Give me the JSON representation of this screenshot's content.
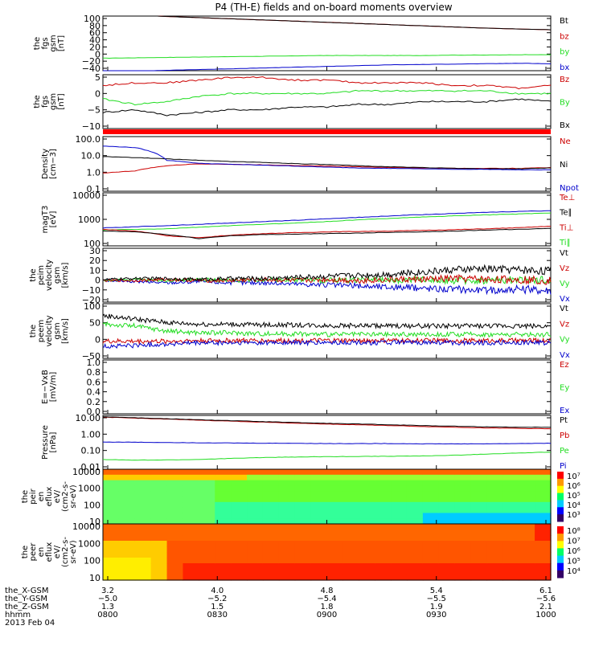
{
  "title": "P4 (TH-E) fields and on-board moments overview",
  "colors": {
    "black": "#000000",
    "red": "#cc0000",
    "green": "#22dd22",
    "blue": "#0000cc",
    "rule": "#ff0000"
  },
  "chart_data": [
    {
      "type": "line",
      "id": "p1",
      "ylabel": [
        "the",
        "fgs",
        "gsm",
        "[nT]"
      ],
      "yticks": [
        "100",
        "80",
        "60",
        "40",
        "20",
        "0",
        "−20",
        "−40"
      ],
      "legend": [
        {
          "name": "Bt",
          "color": "black"
        },
        {
          "name": "bz",
          "color": "red"
        },
        {
          "name": "by",
          "color": "green"
        },
        {
          "name": "bx",
          "color": "blue"
        }
      ],
      "series": [
        {
          "color": "red",
          "values": [
            104,
            102,
            99,
            96,
            93,
            90,
            87,
            84,
            81,
            78,
            75,
            72,
            69,
            67,
            65
          ]
        },
        {
          "color": "black",
          "values": [
            104,
            102,
            99,
            96,
            93,
            90,
            87,
            84,
            81,
            78,
            75,
            72,
            69,
            67,
            65
          ]
        },
        {
          "color": "green",
          "values": [
            -8,
            -7,
            -6,
            -5,
            -4,
            -3,
            -2,
            -1,
            -1,
            -1,
            -1,
            0,
            0,
            1,
            1
          ]
        },
        {
          "color": "blue",
          "values": [
            -43,
            -41,
            -39,
            -37,
            -35,
            -33,
            -31,
            -29,
            -27,
            -25,
            -24,
            -23,
            -22,
            -21,
            -22
          ]
        }
      ]
    },
    {
      "type": "line",
      "id": "p2",
      "ylabel": [
        "the",
        "fgs",
        "gsm",
        "[nT]"
      ],
      "yticks": [
        "5",
        "0",
        "−5",
        "−10"
      ],
      "legend": [
        {
          "name": "Bz",
          "color": "red"
        },
        {
          "name": "By",
          "color": "green"
        },
        {
          "name": "Bx",
          "color": "black"
        }
      ],
      "series": [
        {
          "color": "red",
          "values": [
            4,
            5,
            5,
            6,
            7,
            7,
            6,
            6,
            5,
            5,
            5,
            4,
            4,
            3,
            4
          ]
        },
        {
          "color": "green",
          "values": [
            -1,
            -3,
            -2,
            0,
            1,
            1,
            1,
            1,
            2,
            2,
            2,
            2,
            2,
            1,
            1
          ]
        },
        {
          "color": "black",
          "values": [
            -6,
            -5,
            -7,
            -6,
            -5,
            -5,
            -4,
            -4,
            -3,
            -3,
            -2,
            -2,
            -2,
            -1,
            -2
          ]
        }
      ]
    },
    {
      "type": "line",
      "id": "p3",
      "log": true,
      "ylabel": [
        "Density",
        "[cm−3]"
      ],
      "yticks": [
        "100.0",
        "10.0",
        "1.0",
        "0.1"
      ],
      "legend": [
        {
          "name": "Ne",
          "color": "red"
        },
        {
          "name": "Ni",
          "color": "black"
        },
        {
          "name": "Npot",
          "color": "blue"
        }
      ],
      "series": [
        {
          "color": "red",
          "values": [
            1.0,
            1.3,
            2.5,
            3.2,
            3.0,
            2.8,
            2.6,
            2.4,
            2.2,
            2.0,
            1.9,
            1.8,
            1.8,
            1.8,
            2.0
          ]
        },
        {
          "color": "black",
          "values": [
            8.0,
            7.0,
            6.0,
            5.0,
            4.3,
            3.8,
            3.3,
            2.9,
            2.5,
            2.2,
            2.0,
            1.8,
            1.7,
            1.7,
            1.9
          ]
        },
        {
          "color": "blue",
          "values": [
            30,
            25,
            5,
            3.4,
            3.0,
            2.7,
            2.4,
            2.1,
            1.9,
            1.8,
            1.7,
            1.6,
            1.6,
            1.5,
            1.5
          ]
        }
      ]
    },
    {
      "type": "line",
      "id": "p4",
      "log": true,
      "ylabel": [
        "magT3",
        "[eV]"
      ],
      "yticks": [
        "10000",
        "1000",
        "100"
      ],
      "legend": [
        {
          "name": "Te⊥",
          "color": "red"
        },
        {
          "name": "Te∥",
          "color": "black"
        },
        {
          "name": "Ti⊥",
          "color": "red"
        },
        {
          "name": "Ti∥",
          "color": "green"
        }
      ],
      "series": [
        {
          "color": "blue",
          "values": [
            350,
            400,
            450,
            520,
            600,
            700,
            800,
            950,
            1100,
            1300,
            1500,
            1700,
            1900,
            2100,
            2300
          ]
        },
        {
          "color": "green",
          "values": [
            280,
            300,
            320,
            380,
            450,
            520,
            600,
            700,
            850,
            1000,
            1150,
            1300,
            1450,
            1600,
            1800
          ]
        },
        {
          "color": "red",
          "values": [
            300,
            250,
            150,
            120,
            160,
            190,
            210,
            230,
            240,
            250,
            270,
            290,
            320,
            360,
            420
          ]
        },
        {
          "color": "black",
          "values": [
            250,
            230,
            170,
            110,
            150,
            170,
            180,
            190,
            200,
            220,
            230,
            250,
            280,
            300,
            340
          ]
        }
      ]
    },
    {
      "type": "line",
      "id": "p5",
      "ylabel": [
        "the",
        "peim",
        "velocity",
        "gsm",
        "[km/s]"
      ],
      "yticks": [
        "30",
        "20",
        "10",
        "0",
        "−10",
        "−20"
      ],
      "legend": [
        {
          "name": "Vt",
          "color": "black"
        },
        {
          "name": "Vz",
          "color": "red"
        },
        {
          "name": "Vy",
          "color": "green"
        },
        {
          "name": "Vx",
          "color": "blue"
        }
      ],
      "series": [
        {
          "color": "blue",
          "values": [
            0,
            -1,
            -2,
            -1,
            -2,
            -2,
            -3,
            -4,
            -5,
            -6,
            -7,
            -8,
            -9,
            -8,
            -9
          ]
        },
        {
          "color": "green",
          "values": [
            0,
            1,
            0,
            1,
            0,
            1,
            1,
            0,
            1,
            0,
            1,
            0,
            0,
            1,
            0
          ]
        },
        {
          "color": "red",
          "values": [
            0,
            0,
            1,
            0,
            0,
            1,
            0,
            1,
            0,
            1,
            1,
            2,
            1,
            1,
            0
          ]
        },
        {
          "color": "black",
          "values": [
            1,
            2,
            2,
            1,
            2,
            2,
            3,
            4,
            5,
            6,
            8,
            10,
            11,
            10,
            9
          ]
        }
      ]
    },
    {
      "type": "line",
      "id": "p6",
      "ylabel": [
        "the",
        "peem",
        "velocity",
        "gsm",
        "[km/s]"
      ],
      "yticks": [
        "100",
        "50",
        "0",
        "−50"
      ],
      "legend": [
        {
          "name": "Vt",
          "color": "black"
        },
        {
          "name": "Vz",
          "color": "red"
        },
        {
          "name": "Vy",
          "color": "green"
        },
        {
          "name": "Vx",
          "color": "blue"
        }
      ],
      "series": [
        {
          "color": "black",
          "values": [
            65,
            55,
            45,
            40,
            40,
            38,
            38,
            36,
            36,
            35,
            35,
            35,
            35,
            35,
            35
          ]
        },
        {
          "color": "green",
          "values": [
            40,
            35,
            20,
            15,
            15,
            12,
            12,
            10,
            10,
            10,
            10,
            10,
            10,
            10,
            10
          ]
        },
        {
          "color": "red",
          "values": [
            -10,
            -10,
            -10,
            -8,
            -8,
            -8,
            -8,
            -8,
            -8,
            -8,
            -8,
            -8,
            -8,
            -8,
            -8
          ]
        },
        {
          "color": "blue",
          "values": [
            -25,
            -22,
            -18,
            -15,
            -15,
            -14,
            -14,
            -14,
            -14,
            -14,
            -14,
            -14,
            -14,
            -14,
            -14
          ]
        }
      ]
    },
    {
      "type": "line",
      "id": "p7",
      "ylabel": [
        "E=−VxB",
        "[mV/m]"
      ],
      "yticks": [
        "1.0",
        "0.8",
        "0.6",
        "0.4",
        "0.2",
        "0.0"
      ],
      "legend": [
        {
          "name": "Ez",
          "color": "red"
        },
        {
          "name": "Ey",
          "color": "green"
        },
        {
          "name": "Ex",
          "color": "blue"
        }
      ],
      "series": []
    },
    {
      "type": "line",
      "id": "p8",
      "log": true,
      "ylabel": [
        "Pressure",
        "[nPa]"
      ],
      "yticks": [
        "10.00",
        "1.00",
        "0.10",
        "0.01"
      ],
      "legend": [
        {
          "name": "Pt",
          "color": "black"
        },
        {
          "name": "Pb",
          "color": "red"
        },
        {
          "name": "Pe",
          "color": "green"
        },
        {
          "name": "Pi",
          "color": "blue"
        }
      ],
      "series": [
        {
          "color": "red",
          "values": [
            8.0,
            7.0,
            6.2,
            5.4,
            4.8,
            4.2,
            3.7,
            3.3,
            3.0,
            2.7,
            2.4,
            2.2,
            2.0,
            1.9,
            1.8
          ]
        },
        {
          "color": "black",
          "values": [
            8.4,
            7.4,
            6.5,
            5.7,
            5.1,
            4.5,
            4.0,
            3.6,
            3.3,
            3.0,
            2.7,
            2.5,
            2.3,
            2.2,
            2.2
          ]
        },
        {
          "color": "blue",
          "values": [
            0.33,
            0.32,
            0.31,
            0.3,
            0.29,
            0.28,
            0.28,
            0.27,
            0.27,
            0.27,
            0.26,
            0.26,
            0.26,
            0.27,
            0.28
          ]
        },
        {
          "color": "green",
          "values": [
            0.035,
            0.032,
            0.033,
            0.035,
            0.04,
            0.045,
            0.048,
            0.05,
            0.052,
            0.053,
            0.055,
            0.06,
            0.07,
            0.08,
            0.09
          ]
        }
      ]
    },
    {
      "type": "heatmap",
      "id": "p9",
      "ylabel": [
        "the",
        "peir",
        "en",
        "eflux",
        "eV/",
        "(cm2-s-",
        "sr-eV)"
      ],
      "yticks": [
        "10000",
        "1000",
        "100",
        "10"
      ],
      "colorbar": [
        "10⁷",
        "10⁶",
        "10⁵",
        "10⁴",
        "10³"
      ]
    },
    {
      "type": "heatmap",
      "id": "p10",
      "ylabel": [
        "the",
        "peer",
        "en",
        "eflux",
        "eV/",
        "(cm2-s-",
        "sr-eV)"
      ],
      "yticks": [
        "10000",
        "1000",
        "100",
        "10"
      ],
      "colorbar": [
        "10⁸",
        "10⁷",
        "10⁶",
        "10⁵",
        "10⁴"
      ]
    }
  ],
  "x_axis": {
    "rows": [
      {
        "label": "the_X-GSM",
        "values": [
          "3.2",
          "4.0",
          "4.8",
          "5.4",
          "6.1"
        ]
      },
      {
        "label": "the_Y-GSM",
        "values": [
          "−5.0",
          "−5.2",
          "−5.4",
          "−5.5",
          "−5.6"
        ]
      },
      {
        "label": "the_Z-GSM",
        "values": [
          "1.3",
          "1.5",
          "1.8",
          "1.9",
          "2.1"
        ]
      },
      {
        "label": "hhmm",
        "values": [
          "0800",
          "0830",
          "0900",
          "0930",
          "1000"
        ]
      }
    ],
    "date": "2013 Feb 04"
  }
}
